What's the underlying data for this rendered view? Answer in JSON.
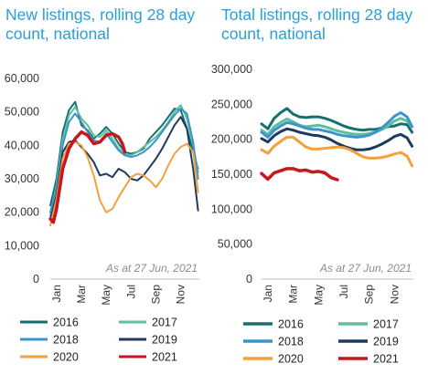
{
  "chart_data": [
    {
      "type": "line",
      "title": "New listings, rolling 28 day count, national",
      "note": "As at 27 Jun, 2021",
      "ylim": [
        0,
        60000
      ],
      "yticks": [
        "0",
        "10,000",
        "20,000",
        "30,000",
        "40,000",
        "50,000",
        "60,000"
      ],
      "xticks": [
        "Jan",
        "Mar",
        "May",
        "Jul",
        "Sep",
        "Nov"
      ],
      "xtick_positions": [
        1,
        3,
        5,
        7,
        9,
        11
      ],
      "xlim": [
        0.5,
        12.5
      ],
      "grid": false,
      "legend_position": "bottom",
      "series": [
        {
          "name": "2016",
          "color": "#17706f",
          "width": 2,
          "x": [
            0.5,
            1,
            1.5,
            2,
            2.5,
            3,
            3.5,
            4,
            4.5,
            5,
            5.5,
            6,
            6.5,
            7,
            7.5,
            8,
            8.5,
            9,
            9.5,
            10,
            10.5,
            11,
            11.5,
            12,
            12.4
          ],
          "values": [
            22000,
            30000,
            44000,
            50500,
            53000,
            46000,
            44500,
            42000,
            43500,
            45500,
            43500,
            40500,
            38000,
            37500,
            38000,
            39000,
            42000,
            44000,
            46000,
            48500,
            51000,
            50500,
            45000,
            38000,
            33000
          ]
        },
        {
          "name": "2017",
          "color": "#5dbf9c",
          "width": 2,
          "x": [
            0.5,
            1,
            1.5,
            2,
            2.5,
            3,
            3.5,
            4,
            4.5,
            5,
            5.5,
            6,
            6.5,
            7,
            7.5,
            8,
            8.5,
            9,
            9.5,
            10,
            10.5,
            11,
            11.5,
            12,
            12.4
          ],
          "values": [
            19000,
            28000,
            42000,
            49000,
            51500,
            48000,
            46000,
            43000,
            42500,
            44500,
            42000,
            39000,
            37500,
            37000,
            38000,
            39500,
            41000,
            42500,
            44500,
            47000,
            50000,
            52000,
            48000,
            40000,
            32000
          ]
        },
        {
          "name": "2018",
          "color": "#3d94cc",
          "width": 2,
          "x": [
            0.5,
            1,
            1.5,
            2,
            2.5,
            3,
            3.5,
            4,
            4.5,
            5,
            5.5,
            6,
            6.5,
            7,
            7.5,
            8,
            8.5,
            9,
            9.5,
            10,
            10.5,
            11,
            11.5,
            12,
            12.4
          ],
          "values": [
            20000,
            27000,
            40000,
            47000,
            49500,
            47000,
            44000,
            41500,
            41000,
            43500,
            41000,
            38500,
            37000,
            36500,
            37000,
            38000,
            39500,
            41500,
            44000,
            46500,
            49000,
            51000,
            49500,
            41000,
            30000
          ]
        },
        {
          "name": "2019",
          "color": "#1f3a5f",
          "width": 2,
          "x": [
            0.5,
            1,
            1.5,
            2,
            2.5,
            3,
            3.5,
            4,
            4.5,
            5,
            5.5,
            6,
            6.5,
            7,
            7.5,
            8,
            8.5,
            9,
            9.5,
            10,
            10.5,
            11,
            11.5,
            12,
            12.4
          ],
          "values": [
            18000,
            25000,
            38000,
            41000,
            41500,
            39500,
            37500,
            35000,
            31000,
            31500,
            30500,
            33000,
            32000,
            30000,
            29500,
            31000,
            33500,
            36000,
            39000,
            42500,
            46000,
            48500,
            45000,
            33000,
            20500
          ]
        },
        {
          "name": "2020",
          "color": "#f3a03d",
          "width": 2,
          "x": [
            0.5,
            1,
            1.5,
            2,
            2.5,
            3,
            3.5,
            4,
            4.5,
            5,
            5.5,
            6,
            6.5,
            7,
            7.5,
            8,
            8.5,
            9,
            9.5,
            10,
            10.5,
            11,
            11.5,
            12,
            12.4
          ],
          "values": [
            16000,
            24000,
            36000,
            40500,
            41000,
            40000,
            36500,
            31000,
            23500,
            20000,
            21000,
            24500,
            27500,
            30500,
            31500,
            31000,
            29500,
            27500,
            30000,
            34000,
            37500,
            39500,
            40500,
            38000,
            26000
          ]
        },
        {
          "name": "2021",
          "color": "#c8161d",
          "width": 3.5,
          "x": [
            0.5,
            0.75,
            1,
            1.5,
            2,
            2.5,
            3,
            3.5,
            4,
            4.5,
            5,
            5.5,
            6,
            6.3,
            6.5
          ],
          "values": [
            18000,
            17000,
            21000,
            33000,
            39000,
            42000,
            44000,
            43000,
            40500,
            41000,
            43000,
            43500,
            42500,
            40500,
            38000
          ]
        }
      ]
    },
    {
      "type": "line",
      "title": "Total listings, rolling 28 day count, national",
      "note": "As at 27 Jun, 2021",
      "ylim": [
        0,
        300000
      ],
      "yticks": [
        "0",
        "50,000",
        "100,000",
        "150,000",
        "200,000",
        "250,000",
        "300,000"
      ],
      "xticks": [
        "Jan",
        "Mar",
        "May",
        "Jul",
        "Sep",
        "Nov"
      ],
      "xtick_positions": [
        1,
        3,
        5,
        7,
        9,
        11
      ],
      "xlim": [
        0.5,
        12.5
      ],
      "grid": false,
      "legend_position": "bottom",
      "series": [
        {
          "name": "2016",
          "color": "#17706f",
          "width": 3,
          "x": [
            0.5,
            1,
            1.5,
            2,
            2.5,
            3,
            3.5,
            4,
            4.5,
            5,
            5.5,
            6,
            6.5,
            7,
            7.5,
            8,
            8.5,
            9,
            9.5,
            10,
            10.5,
            11,
            11.5,
            12,
            12.4
          ],
          "values": [
            222000,
            215000,
            230000,
            238000,
            244000,
            236000,
            232000,
            231000,
            232000,
            232000,
            230000,
            227000,
            223000,
            219000,
            216000,
            214000,
            213000,
            214000,
            214000,
            216000,
            218000,
            219000,
            222000,
            221000,
            210000
          ]
        },
        {
          "name": "2017",
          "color": "#5dbf9c",
          "width": 3,
          "x": [
            0.5,
            1,
            1.5,
            2,
            2.5,
            3,
            3.5,
            4,
            4.5,
            5,
            5.5,
            6,
            6.5,
            7,
            7.5,
            8,
            8.5,
            9,
            9.5,
            10,
            10.5,
            11,
            11.5,
            12,
            12.4
          ],
          "values": [
            213000,
            207000,
            218000,
            224000,
            229000,
            225000,
            220000,
            218000,
            219000,
            220000,
            218000,
            215000,
            212000,
            210000,
            208000,
            207000,
            207000,
            208000,
            210000,
            214000,
            219000,
            226000,
            230000,
            226000,
            218000
          ]
        },
        {
          "name": "2018",
          "color": "#3d94cc",
          "width": 3,
          "x": [
            0.5,
            1,
            1.5,
            2,
            2.5,
            3,
            3.5,
            4,
            4.5,
            5,
            5.5,
            6,
            6.5,
            7,
            7.5,
            8,
            8.5,
            9,
            9.5,
            10,
            10.5,
            11,
            11.5,
            12,
            12.4
          ],
          "values": [
            210000,
            203000,
            213000,
            219000,
            224000,
            222000,
            219000,
            216000,
            214000,
            214000,
            212000,
            210000,
            207000,
            205000,
            204000,
            203000,
            204000,
            206000,
            210000,
            216000,
            224000,
            233000,
            238000,
            232000,
            218000
          ]
        },
        {
          "name": "2019",
          "color": "#1f3a5f",
          "width": 3,
          "x": [
            0.5,
            1,
            1.5,
            2,
            2.5,
            3,
            3.5,
            4,
            4.5,
            5,
            5.5,
            6,
            6.5,
            7,
            7.5,
            8,
            8.5,
            9,
            9.5,
            10,
            10.5,
            11,
            11.5,
            12,
            12.4
          ],
          "values": [
            201000,
            196000,
            205000,
            211000,
            215000,
            213000,
            210000,
            208000,
            206000,
            205000,
            203000,
            199000,
            194000,
            190000,
            187000,
            185000,
            185000,
            186000,
            189000,
            193000,
            198000,
            204000,
            207000,
            202000,
            190000
          ]
        },
        {
          "name": "2020",
          "color": "#f3a03d",
          "width": 3,
          "x": [
            0.5,
            1,
            1.5,
            2,
            2.5,
            3,
            3.5,
            4,
            4.5,
            5,
            5.5,
            6,
            6.5,
            7,
            7.5,
            8,
            8.5,
            9,
            9.5,
            10,
            10.5,
            11,
            11.5,
            12,
            12.4
          ],
          "values": [
            185000,
            180000,
            190000,
            197000,
            203000,
            203000,
            196000,
            189000,
            186000,
            186000,
            187000,
            188000,
            189000,
            188000,
            185000,
            180000,
            175000,
            173000,
            173000,
            174000,
            176000,
            179000,
            181000,
            176000,
            162000
          ]
        },
        {
          "name": "2021",
          "color": "#c8161d",
          "width": 3.5,
          "x": [
            0.5,
            1,
            1.5,
            2,
            2.5,
            3,
            3.5,
            4,
            4.5,
            5,
            5.5,
            6,
            6.5
          ],
          "values": [
            151000,
            143000,
            152000,
            155000,
            158000,
            158000,
            155000,
            156000,
            153000,
            154000,
            152000,
            145000,
            142000
          ]
        }
      ]
    }
  ]
}
